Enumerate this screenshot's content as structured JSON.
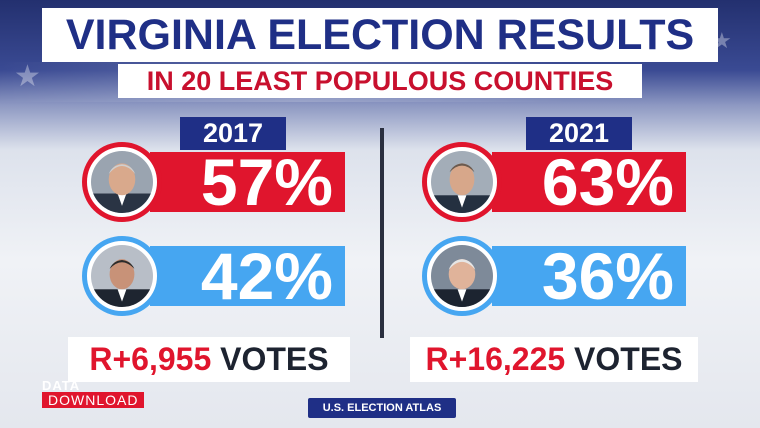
{
  "title": "VIRGINIA ELECTION RESULTS",
  "subtitle": "IN 20 LEAST POPULOUS COUNTIES",
  "colors": {
    "republican": "#e0152d",
    "democrat": "#46a6f1",
    "navy": "#1f2f86"
  },
  "left": {
    "year": "2017",
    "rep_pct": "57%",
    "dem_pct": "42%",
    "margin": "R+6,955",
    "votes_word": "VOTES"
  },
  "right": {
    "year": "2021",
    "rep_pct": "63%",
    "dem_pct": "36%",
    "margin": "R+16,225",
    "votes_word": "VOTES"
  },
  "logo": {
    "top": "DATA",
    "bottom": "DOWNLOAD"
  },
  "source": "U.S. ELECTION ATLAS"
}
